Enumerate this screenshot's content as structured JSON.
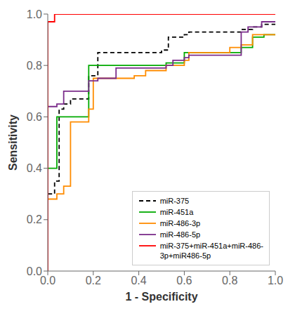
{
  "chart_data": {
    "type": "line",
    "xlabel": "1 - Specificity",
    "ylabel": "Sensitivity",
    "xlim": [
      0.0,
      1.0
    ],
    "ylim": [
      0.0,
      1.0
    ],
    "xticks": [
      {
        "value": 0.0,
        "label": "0.0"
      },
      0.2,
      0.4,
      0.6,
      0.8,
      {
        "value": 1.0,
        "label": "1.0"
      }
    ],
    "yticks": [
      {
        "value": 0.0,
        "label": "0.0"
      },
      0.2,
      0.4,
      0.6,
      0.8,
      {
        "value": 1.0,
        "label": "1.0"
      }
    ],
    "grid": false,
    "legend": "lower right",
    "series": [
      {
        "name": "miR-375",
        "color": "#000000",
        "line_style": "dashed",
        "x": [
          0.0,
          0.0,
          0.03,
          0.03,
          0.05,
          0.05,
          0.07,
          0.07,
          0.1,
          0.1,
          0.18,
          0.18,
          0.22,
          0.22,
          0.5,
          0.5,
          0.53,
          0.53,
          0.6,
          0.6,
          0.62,
          0.62,
          0.85,
          0.85,
          0.9,
          0.9,
          0.94,
          0.94,
          1.0
        ],
        "values": [
          0.0,
          0.3,
          0.3,
          0.35,
          0.35,
          0.63,
          0.63,
          0.65,
          0.65,
          0.67,
          0.67,
          0.76,
          0.76,
          0.85,
          0.85,
          0.86,
          0.86,
          0.91,
          0.91,
          0.92,
          0.92,
          0.93,
          0.93,
          0.94,
          0.94,
          0.95,
          0.95,
          0.96,
          0.96
        ]
      },
      {
        "name": "miR-451a",
        "color": "#00aa00",
        "line_style": "solid",
        "x": [
          0.0,
          0.0,
          0.04,
          0.04,
          0.18,
          0.18,
          0.2,
          0.2,
          0.52,
          0.52,
          0.6,
          0.6,
          0.85,
          0.85,
          0.9,
          0.9,
          0.95,
          0.95,
          1.0
        ],
        "values": [
          0.0,
          0.4,
          0.4,
          0.6,
          0.6,
          0.8,
          0.8,
          0.8,
          0.8,
          0.81,
          0.81,
          0.85,
          0.85,
          0.87,
          0.87,
          0.91,
          0.91,
          0.92,
          0.92
        ]
      },
      {
        "name": "miR-486-3p",
        "color": "#ff8c00",
        "line_style": "solid",
        "x": [
          0.0,
          0.0,
          0.04,
          0.04,
          0.07,
          0.07,
          0.1,
          0.1,
          0.18,
          0.18,
          0.2,
          0.2,
          0.38,
          0.38,
          0.43,
          0.43,
          0.52,
          0.52,
          0.6,
          0.6,
          0.62,
          0.62,
          0.8,
          0.8,
          0.85,
          0.85,
          0.9,
          0.9,
          1.0
        ],
        "values": [
          0.0,
          0.28,
          0.28,
          0.3,
          0.3,
          0.33,
          0.33,
          0.58,
          0.58,
          0.63,
          0.63,
          0.75,
          0.75,
          0.76,
          0.76,
          0.78,
          0.78,
          0.8,
          0.8,
          0.82,
          0.82,
          0.85,
          0.85,
          0.87,
          0.87,
          0.88,
          0.88,
          0.92,
          0.92
        ]
      },
      {
        "name": "miR-486-5p",
        "color": "#7b2d8b",
        "line_style": "solid",
        "x": [
          0.0,
          0.0,
          0.04,
          0.04,
          0.07,
          0.07,
          0.18,
          0.18,
          0.22,
          0.22,
          0.3,
          0.3,
          0.52,
          0.52,
          0.55,
          0.55,
          0.6,
          0.6,
          0.62,
          0.62,
          0.85,
          0.85,
          0.88,
          0.88,
          0.94,
          0.94,
          1.0
        ],
        "values": [
          0.0,
          0.64,
          0.64,
          0.65,
          0.65,
          0.7,
          0.7,
          0.74,
          0.74,
          0.75,
          0.75,
          0.79,
          0.79,
          0.8,
          0.8,
          0.82,
          0.82,
          0.83,
          0.83,
          0.84,
          0.84,
          0.93,
          0.93,
          0.95,
          0.95,
          0.97,
          0.97
        ]
      },
      {
        "name": "miR-375+miR-451a+miR-486-\n3p+miR486-5p",
        "color": "#ff0000",
        "line_style": "solid",
        "x": [
          0.0,
          0.0,
          0.03,
          0.03,
          1.0
        ],
        "values": [
          0.0,
          0.97,
          0.97,
          1.0,
          1.0
        ]
      }
    ]
  }
}
